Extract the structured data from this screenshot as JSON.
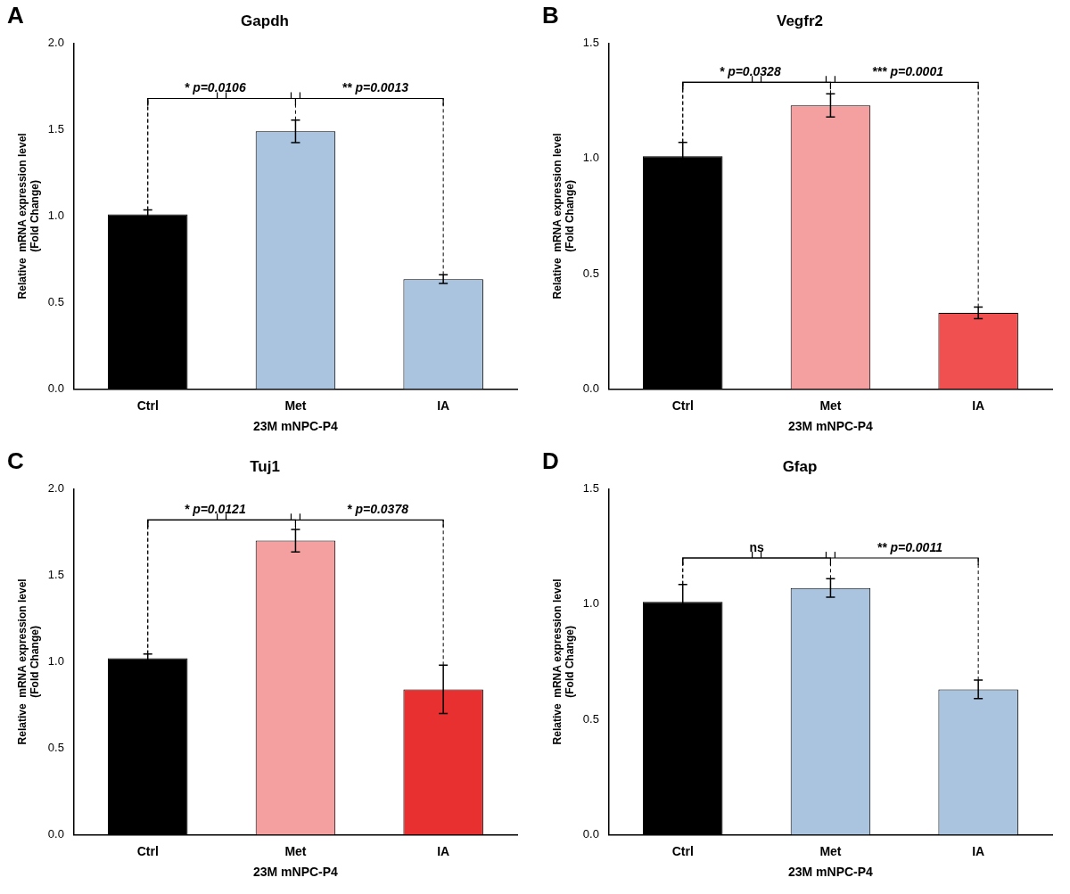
{
  "chart_data": [
    {
      "type": "bar",
      "panel_label": "A",
      "title": "Gapdh",
      "categories": [
        "Ctrl",
        "Met",
        "IA"
      ],
      "values": [
        1.01,
        1.49,
        0.635
      ],
      "errors": [
        0.025,
        0.065,
        0.025
      ],
      "colors": [
        "#000000",
        "#aac4e0",
        "#aac4e0"
      ],
      "ylim": [
        0,
        2.0
      ],
      "yticks": [
        {
          "value": 0.0,
          "label": "0.0"
        },
        0.5,
        {
          "value": 1.0,
          "label": "1.0"
        },
        1.5,
        {
          "value": 2.0,
          "label": "2.0"
        }
      ],
      "xlabel": "23M mNPC-P4",
      "ylabel": "Relative  mRNA expression level\n(Fold Change)",
      "grid": false,
      "annotations": [
        {
          "start": "Ctrl",
          "end": "Met",
          "y": 1.68,
          "text": "* p=0.0106"
        },
        {
          "start": "Ctrl",
          "end": "IA",
          "y": 1.68,
          "text": "** p=0.0013"
        }
      ]
    },
    {
      "type": "bar",
      "panel_label": "B",
      "title": "Vegfr2",
      "categories": [
        "Ctrl",
        "Met",
        "IA"
      ],
      "values": [
        1.01,
        1.23,
        0.33
      ],
      "errors": [
        0.06,
        0.05,
        0.025
      ],
      "colors": [
        "#000000",
        "#f4a0a0",
        "#f05050"
      ],
      "ylim": [
        0,
        1.5
      ],
      "yticks": [
        {
          "value": 0.0,
          "label": "0.0"
        },
        0.5,
        {
          "value": 1.0,
          "label": "1.0"
        },
        1.5
      ],
      "xlabel": "23M mNPC-P4",
      "ylabel": "Relative  mRNA expression level\n(Fold Change)",
      "grid": false,
      "annotations": [
        {
          "start": "Ctrl",
          "end": "Met",
          "y": 1.33,
          "text": "* p=0.0328"
        },
        {
          "start": "Ctrl",
          "end": "IA",
          "y": 1.33,
          "text": "*** p=0.0001"
        }
      ]
    },
    {
      "type": "bar",
      "panel_label": "C",
      "title": "Tuj1",
      "categories": [
        "Ctrl",
        "Met",
        "IA"
      ],
      "values": [
        1.02,
        1.7,
        0.84
      ],
      "errors": [
        0.025,
        0.065,
        0.14
      ],
      "colors": [
        "#000000",
        "#f4a0a0",
        "#e83030"
      ],
      "ylim": [
        0,
        2.0
      ],
      "yticks": [
        {
          "value": 0.0,
          "label": "0.0"
        },
        0.5,
        {
          "value": 1.0,
          "label": "1.0"
        },
        1.5,
        {
          "value": 2.0,
          "label": "2.0"
        }
      ],
      "xlabel": "23M mNPC-P4",
      "ylabel": "Relative  mRNA expression level\n(Fold Change)",
      "grid": false,
      "annotations": [
        {
          "start": "Ctrl",
          "end": "Met",
          "y": 1.82,
          "text": "* p=0.0121"
        },
        {
          "start": "Ctrl",
          "end": "IA",
          "y": 1.82,
          "text": "* p=0.0378"
        }
      ]
    },
    {
      "type": "bar",
      "panel_label": "D",
      "title": "Gfap",
      "categories": [
        "Ctrl",
        "Met",
        "IA"
      ],
      "values": [
        1.01,
        1.07,
        0.63
      ],
      "errors": [
        0.075,
        0.04,
        0.04
      ],
      "colors": [
        "#000000",
        "#aac4e0",
        "#aac4e0"
      ],
      "ylim": [
        0,
        1.5
      ],
      "yticks": [
        {
          "value": 0.0,
          "label": "0.0"
        },
        0.5,
        {
          "value": 1.0,
          "label": "1.0"
        },
        1.5
      ],
      "xlabel": "23M mNPC-P4",
      "ylabel": "Relative  mRNA expression level\n(Fold Change)",
      "grid": false,
      "annotations": [
        {
          "start": "Ctrl",
          "end": "Met",
          "y": 1.2,
          "text": "ns"
        },
        {
          "start": "Ctrl",
          "end": "IA",
          "y": 1.2,
          "text": "** p=0.0011"
        }
      ]
    }
  ]
}
